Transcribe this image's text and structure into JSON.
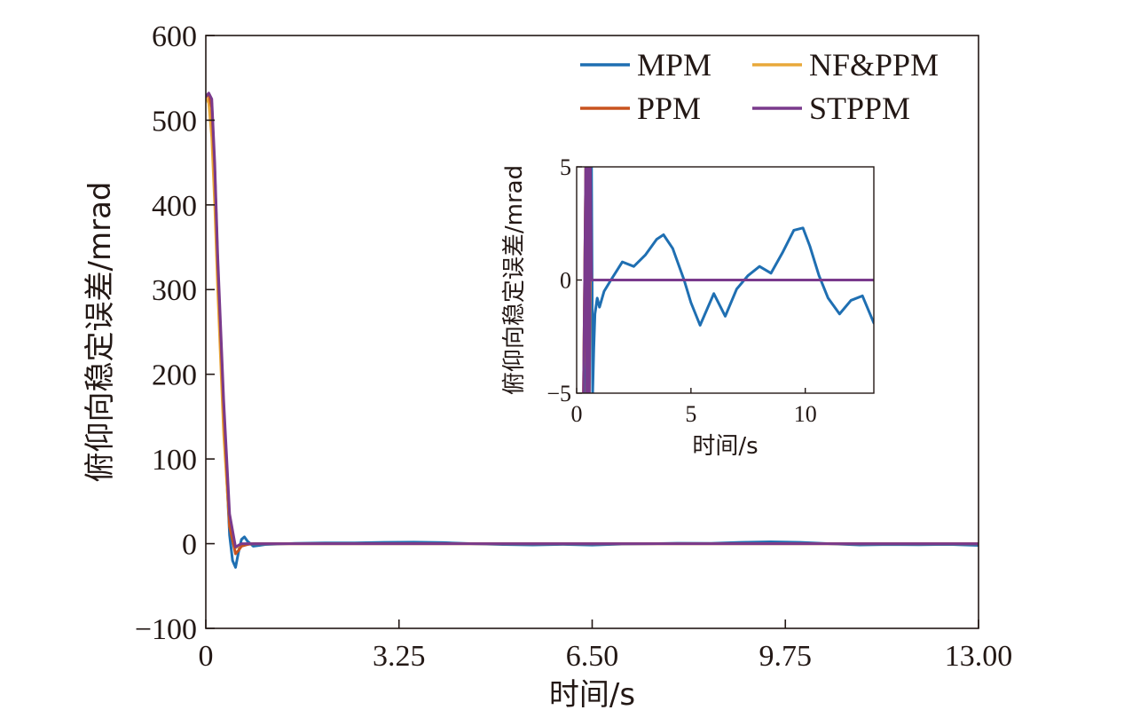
{
  "chart_data": [
    {
      "type": "line",
      "xlabel": "时间/s",
      "ylabel": "俯仰向稳定误差/mrad",
      "xlim": [
        0,
        13
      ],
      "ylim": [
        -100,
        600
      ],
      "xticks": [
        0,
        3.25,
        6.5,
        9.75,
        13
      ],
      "xtick_labels": [
        "0",
        "3.25",
        "6.50",
        "9.75",
        "13.00"
      ],
      "yticks": [
        -100,
        0,
        100,
        200,
        300,
        400,
        500,
        600
      ],
      "ytick_labels": [
        "−100",
        "0",
        "100",
        "200",
        "300",
        "400",
        "500",
        "600"
      ],
      "grid": false,
      "legend_position": "top-right",
      "series": [
        {
          "name": "MPM",
          "color": "#1f6fb2",
          "x": [
            0,
            0.05,
            0.1,
            0.15,
            0.2,
            0.3,
            0.4,
            0.45,
            0.5,
            0.55,
            0.6,
            0.65,
            0.7,
            0.8,
            0.9,
            1.0,
            1.5,
            2.0,
            2.5,
            3.0,
            3.5,
            4.0,
            4.5,
            5.0,
            5.5,
            6.0,
            6.5,
            7.0,
            7.5,
            8.0,
            8.5,
            9.0,
            9.5,
            10.0,
            10.5,
            11.0,
            11.5,
            12.0,
            12.5,
            13.0
          ],
          "y": [
            528,
            530,
            520,
            440,
            330,
            150,
            10,
            -20,
            -28,
            -10,
            5,
            8,
            3,
            -3,
            -2,
            -1,
            0.3,
            0.8,
            0.8,
            1.5,
            1.8,
            1.2,
            0,
            -1,
            -1.5,
            -0.8,
            -1.6,
            -0.5,
            0,
            0.5,
            0.4,
            1.5,
            2.2,
            1.5,
            0,
            -1.5,
            -1,
            -1.3,
            -0.8,
            -2
          ]
        },
        {
          "name": "NF&PPM",
          "color": "#e8a83a",
          "x": [
            0,
            0.05,
            0.1,
            0.15,
            0.2,
            0.3,
            0.4,
            0.5,
            0.55,
            0.6,
            0.7,
            0.8,
            1.0,
            13.0
          ],
          "y": [
            528,
            520,
            480,
            400,
            300,
            130,
            20,
            -5,
            -3,
            -1,
            0,
            0,
            0,
            0
          ]
        },
        {
          "name": "PPM",
          "color": "#c8531f",
          "x": [
            0,
            0.05,
            0.1,
            0.15,
            0.2,
            0.3,
            0.4,
            0.5,
            0.55,
            0.6,
            0.7,
            0.8,
            1.0,
            13.0
          ],
          "y": [
            528,
            530,
            515,
            440,
            330,
            160,
            20,
            -12,
            -8,
            -3,
            -1,
            0,
            0,
            0
          ]
        },
        {
          "name": "STPPM",
          "color": "#7a3a8c",
          "x": [
            0,
            0.05,
            0.1,
            0.15,
            0.2,
            0.3,
            0.4,
            0.5,
            0.55,
            0.6,
            0.7,
            0.8,
            1.0,
            13.0
          ],
          "y": [
            528,
            532,
            525,
            450,
            340,
            170,
            35,
            -4,
            -2,
            0,
            0,
            0,
            0,
            0
          ]
        }
      ]
    },
    {
      "type": "line",
      "role": "inset",
      "xlabel": "时间/s",
      "ylabel": "俯仰向稳定误差/mrad",
      "xlim": [
        0,
        13
      ],
      "ylim": [
        -5,
        5
      ],
      "xticks": [
        0,
        5,
        10
      ],
      "xtick_labels": [
        "0",
        "5",
        "10"
      ],
      "yticks": [
        -5,
        0,
        5
      ],
      "ytick_labels": [
        "−5",
        "0",
        "5"
      ],
      "grid": false,
      "series": [
        {
          "name": "MPM",
          "color": "#1f6fb2",
          "x": [
            0.35,
            0.4,
            0.45,
            0.5,
            0.55,
            0.6,
            0.65,
            0.7,
            0.75,
            0.8,
            0.9,
            1.0,
            1.2,
            1.5,
            2.0,
            2.5,
            3.0,
            3.5,
            3.8,
            4.2,
            4.7,
            5.0,
            5.4,
            6.0,
            6.5,
            7.0,
            7.5,
            8.0,
            8.5,
            9.0,
            9.5,
            9.9,
            10.2,
            10.6,
            11.0,
            11.5,
            12.0,
            12.5,
            13.0
          ],
          "y": [
            -5,
            5,
            5,
            -5,
            -5,
            5,
            5,
            -5,
            -3,
            -1.5,
            -0.8,
            -1.2,
            -0.5,
            0,
            0.8,
            0.6,
            1.1,
            1.8,
            2.0,
            1.4,
            0,
            -1.0,
            -2.0,
            -0.6,
            -1.6,
            -0.4,
            0.2,
            0.6,
            0.3,
            1.2,
            2.2,
            2.3,
            1.5,
            0.2,
            -0.8,
            -1.5,
            -0.9,
            -0.7,
            -1.9
          ]
        },
        {
          "name": "NF&PPM",
          "color": "#e8a83a",
          "x": [
            0.3,
            0.4,
            0.45,
            0.5,
            0.55,
            0.6,
            13.0
          ],
          "y": [
            -5,
            5,
            -5,
            5,
            -5,
            0,
            0
          ]
        },
        {
          "name": "PPM",
          "color": "#c8531f",
          "x": [
            0.3,
            0.4,
            0.45,
            0.5,
            0.55,
            0.6,
            0.65,
            13.0
          ],
          "y": [
            -5,
            5,
            -5,
            5,
            -5,
            2,
            0,
            0
          ]
        },
        {
          "name": "STPPM",
          "color": "#7a3a8c",
          "x": [
            0.3,
            0.4,
            0.45,
            0.5,
            0.55,
            0.6,
            0.65,
            13.0
          ],
          "y": [
            -5,
            5,
            -5,
            5,
            -5,
            5,
            0,
            0
          ]
        }
      ]
    }
  ]
}
